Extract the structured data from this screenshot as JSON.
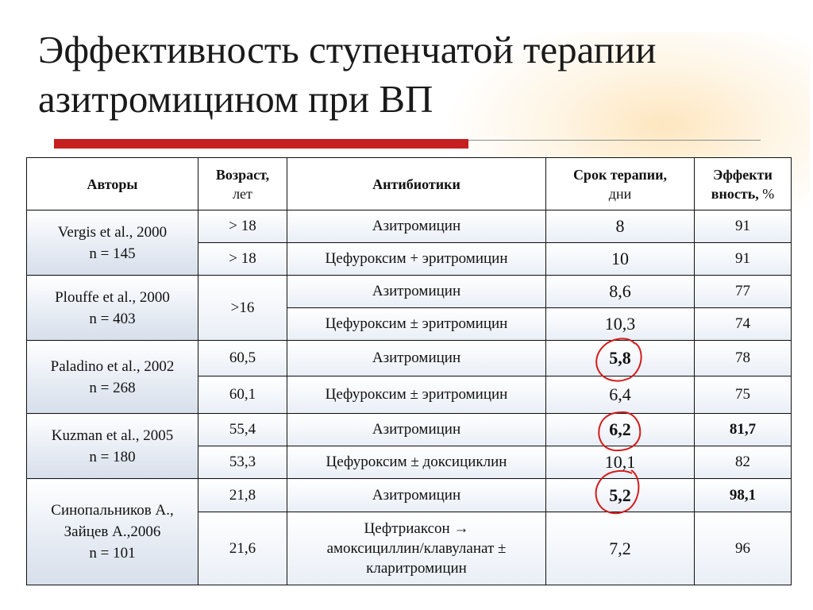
{
  "slide": {
    "title_line1": "Эффективность ступенчатой терапии",
    "title_line2": "азитромицином при ВП",
    "accent_color": "#c61f1f"
  },
  "table": {
    "headers": {
      "authors": "Авторы",
      "age": "Возраст,",
      "age_unit": "лет",
      "antibiotics": "Антибиотики",
      "duration": "Срок терапии,",
      "duration_unit": "дни",
      "efficacy_1": "Эффекти",
      "efficacy_2": "вность,",
      "efficacy_unit": "%"
    },
    "groups": [
      {
        "author": "Vergis et al., 2000",
        "n": "n = 145",
        "rows": [
          {
            "age": "> 18",
            "drug": "Азитромицин",
            "duration": "8",
            "efficacy": "91"
          },
          {
            "age": "> 18",
            "drug": "Цефуроксим + эритромицин",
            "duration": "10",
            "efficacy": "91"
          }
        ]
      },
      {
        "author": "Plouffe et al., 2000",
        "n": "n = 403",
        "age": ">16",
        "rows": [
          {
            "drug": "Азитромицин",
            "duration": "8,6",
            "efficacy": "77"
          },
          {
            "drug": "Цефуроксим ± эритромицин",
            "duration": "10,3",
            "efficacy": "74"
          }
        ]
      },
      {
        "author": "Paladino et al., 2002",
        "n": "n = 268",
        "rows": [
          {
            "age": "60,5",
            "drug": "Азитромицин",
            "duration": "5,8",
            "efficacy": "78"
          },
          {
            "age": "60,1",
            "drug": "Цефуроксим ± эритромицин",
            "duration": "6,4",
            "efficacy": "75"
          }
        ]
      },
      {
        "author": "Kuzman et al., 2005",
        "n": "n = 180",
        "rows": [
          {
            "age": "55,4",
            "drug": "Азитромицин",
            "duration": "6,2",
            "efficacy": "81,7"
          },
          {
            "age": "53,3",
            "drug": "Цефуроксим ± доксициклин",
            "duration": "10,1",
            "efficacy": "82"
          }
        ]
      },
      {
        "author_line1": "Синопальников А.,",
        "author_line2": "Зайцев А.,2006",
        "n": "n = 101",
        "rows": [
          {
            "age": "21,8",
            "drug": "Азитромицин",
            "duration": "5,2",
            "efficacy": "98,1"
          },
          {
            "age": "21,6",
            "drug_line1": "Цефтриаксон →",
            "drug_line2": "амоксициллин/клавуланат ±",
            "drug_line3": "кларитромицин",
            "duration": "7,2",
            "efficacy": "96"
          }
        ]
      }
    ]
  }
}
